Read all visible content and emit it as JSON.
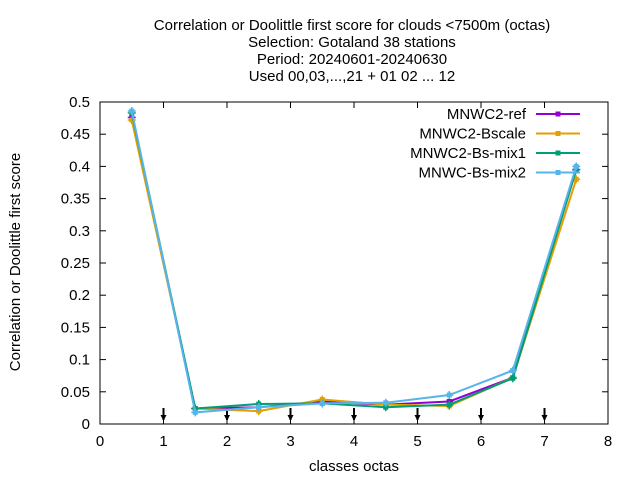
{
  "chart_data": {
    "type": "line",
    "title_lines": [
      "Correlation or Doolittle first score  for clouds <7500m (octas)",
      "Selection: Gotaland     38 stations",
      "Period: 20240601-20240630",
      "Used 00,03,...,21 + 01 02 ... 12"
    ],
    "xlabel": "classes octas",
    "ylabel": "Correlation or Doolittle first score",
    "xlim": [
      0,
      8
    ],
    "ylim": [
      0,
      0.5
    ],
    "xticks": [
      "0",
      "1",
      "2",
      "3",
      "4",
      "5",
      "6",
      "7",
      "8"
    ],
    "yticks": [
      "0",
      "0.05",
      "0.1",
      "0.15",
      "0.2",
      "0.25",
      "0.3",
      "0.35",
      "0.4",
      "0.45",
      "0.5"
    ],
    "grid": false,
    "legend_position": "top-right",
    "class_markers_x": [
      1,
      2,
      3,
      4,
      5,
      6,
      7
    ],
    "x": [
      0.5,
      1.5,
      2.5,
      3.5,
      4.5,
      5.5,
      6.5,
      7.5
    ],
    "series": [
      {
        "name": "MNWC2-ref",
        "color": "#9400d3",
        "marker": "plus",
        "values": [
          0.476,
          0.024,
          0.026,
          0.035,
          0.03,
          0.035,
          0.072,
          0.395
        ]
      },
      {
        "name": "MNWC2-Bscale",
        "color": "#e69f00",
        "marker": "plus",
        "values": [
          0.472,
          0.024,
          0.02,
          0.038,
          0.03,
          0.028,
          0.072,
          0.38
        ]
      },
      {
        "name": "MNWC2-Bs-mix1",
        "color": "#009e73",
        "marker": "plus",
        "values": [
          0.483,
          0.024,
          0.031,
          0.032,
          0.026,
          0.03,
          0.071,
          0.395
        ]
      },
      {
        "name": "MNWC-Bs-mix2",
        "color": "#56b4e9",
        "marker": "plus",
        "values": [
          0.486,
          0.018,
          0.026,
          0.032,
          0.033,
          0.045,
          0.083,
          0.4
        ]
      }
    ]
  }
}
